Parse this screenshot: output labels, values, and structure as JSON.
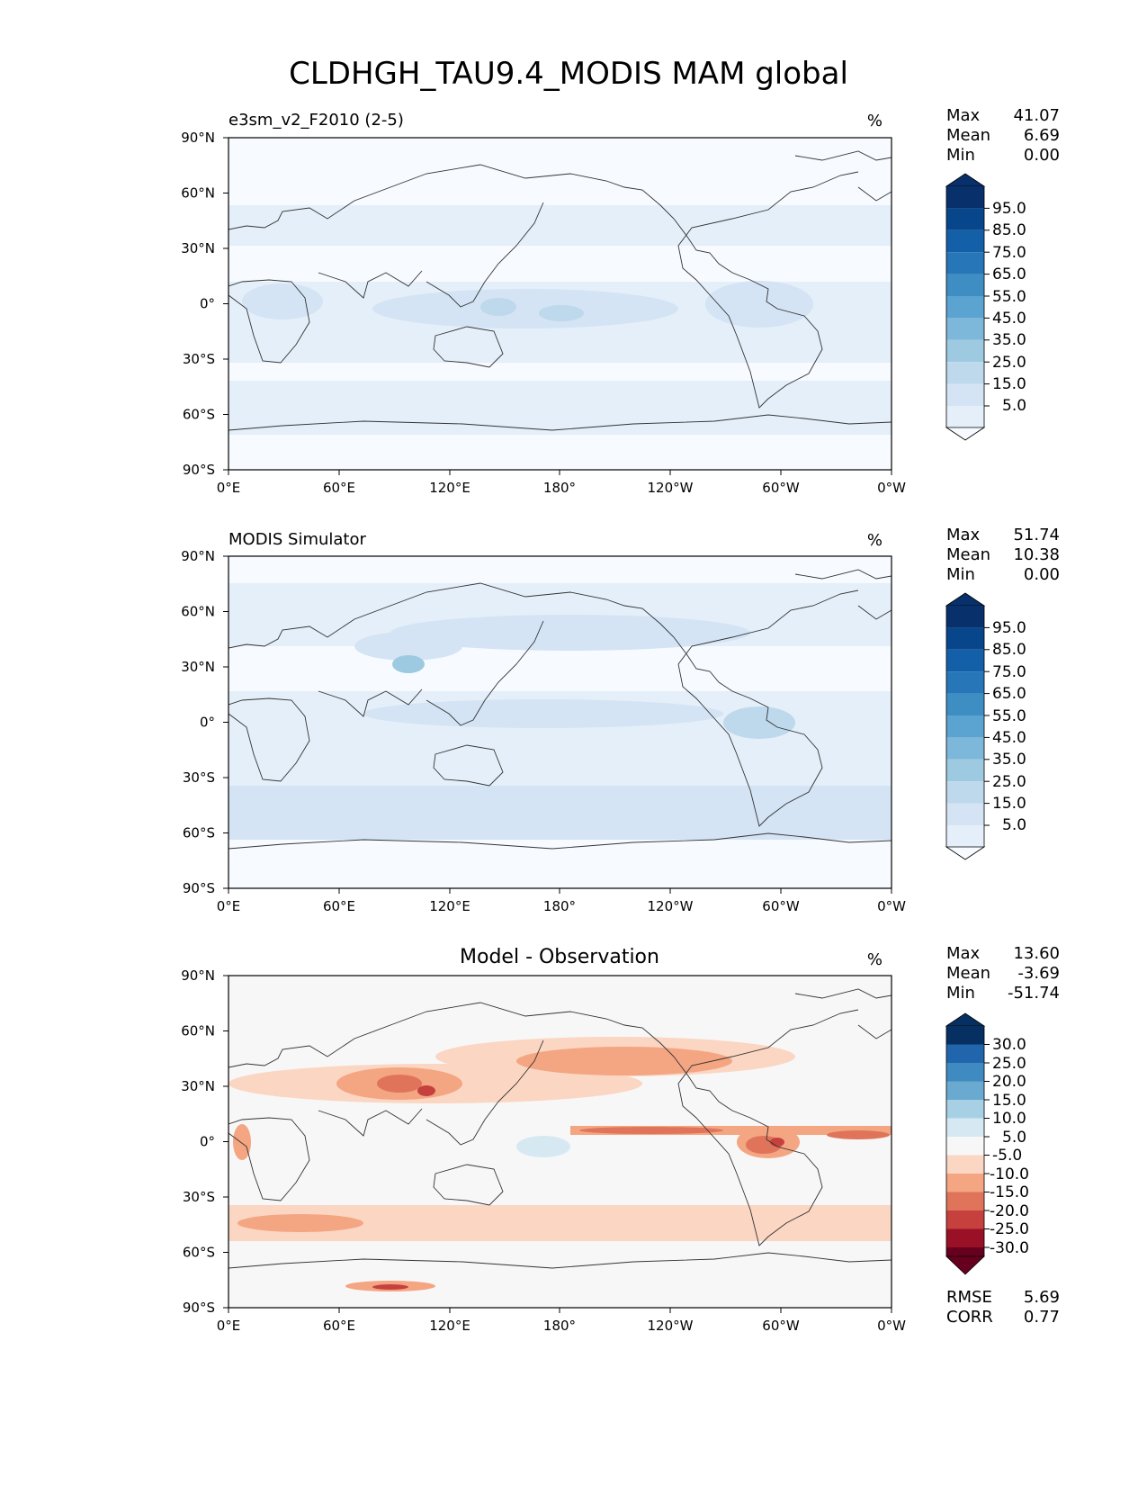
{
  "figure": {
    "title": "CLDHGH_TAU9.4_MODIS MAM global"
  },
  "axes": {
    "lat_ticks": [
      "90°N",
      "60°N",
      "30°N",
      "0°",
      "30°S",
      "60°S",
      "90°S"
    ],
    "lon_ticks": [
      "0°E",
      "60°E",
      "120°E",
      "180°",
      "120°W",
      "60°W",
      "0°W"
    ]
  },
  "panels": [
    {
      "left_title": "e3sm_v2_F2010 (2-5)",
      "center_title": "",
      "units": "%",
      "stats": [
        {
          "label": "Max",
          "value": "41.07"
        },
        {
          "label": "Mean",
          "value": "6.69"
        },
        {
          "label": "Min",
          "value": "0.00"
        }
      ],
      "colorbar": {
        "ticks": [
          "95.0",
          "85.0",
          "75.0",
          "65.0",
          "55.0",
          "45.0",
          "35.0",
          "25.0",
          "15.0",
          "5.0"
        ],
        "colors": [
          "#f7fbff",
          "#e4eff9",
          "#d4e4f4",
          "#bed8ec",
          "#9ecae1",
          "#7db8da",
          "#5ba3d0",
          "#3e8ec4",
          "#2676b8",
          "#1460a8",
          "#08468b",
          "#08306b"
        ]
      }
    },
    {
      "left_title": "MODIS Simulator",
      "center_title": "",
      "units": "%",
      "stats": [
        {
          "label": "Max",
          "value": "51.74"
        },
        {
          "label": "Mean",
          "value": "10.38"
        },
        {
          "label": "Min",
          "value": "0.00"
        }
      ],
      "colorbar": {
        "ticks": [
          "95.0",
          "85.0",
          "75.0",
          "65.0",
          "55.0",
          "45.0",
          "35.0",
          "25.0",
          "15.0",
          "5.0"
        ],
        "colors": [
          "#f7fbff",
          "#e4eff9",
          "#d4e4f4",
          "#bed8ec",
          "#9ecae1",
          "#7db8da",
          "#5ba3d0",
          "#3e8ec4",
          "#2676b8",
          "#1460a8",
          "#08468b",
          "#08306b"
        ]
      }
    },
    {
      "left_title": "",
      "center_title": "Model - Observation",
      "units": "%",
      "stats": [
        {
          "label": "Max",
          "value": "13.60"
        },
        {
          "label": "Mean",
          "value": "-3.69"
        },
        {
          "label": "Min",
          "value": "-51.74"
        }
      ],
      "metrics": [
        {
          "label": "RMSE",
          "value": "5.69"
        },
        {
          "label": "CORR",
          "value": "0.77"
        }
      ],
      "colorbar": {
        "ticks": [
          "30.0",
          "25.0",
          "20.0",
          "15.0",
          "10.0",
          "5.0",
          "-5.0",
          "-10.0",
          "-15.0",
          "-20.0",
          "-25.0",
          "-30.0"
        ],
        "colors": [
          "#67001f",
          "#9a1026",
          "#c6413e",
          "#e0745b",
          "#f4a582",
          "#fbd6c2",
          "#f7f7f7",
          "#d6e9f2",
          "#a8d0e5",
          "#6aa9d0",
          "#3f8ac0",
          "#2166ac",
          "#053061"
        ]
      }
    }
  ]
}
